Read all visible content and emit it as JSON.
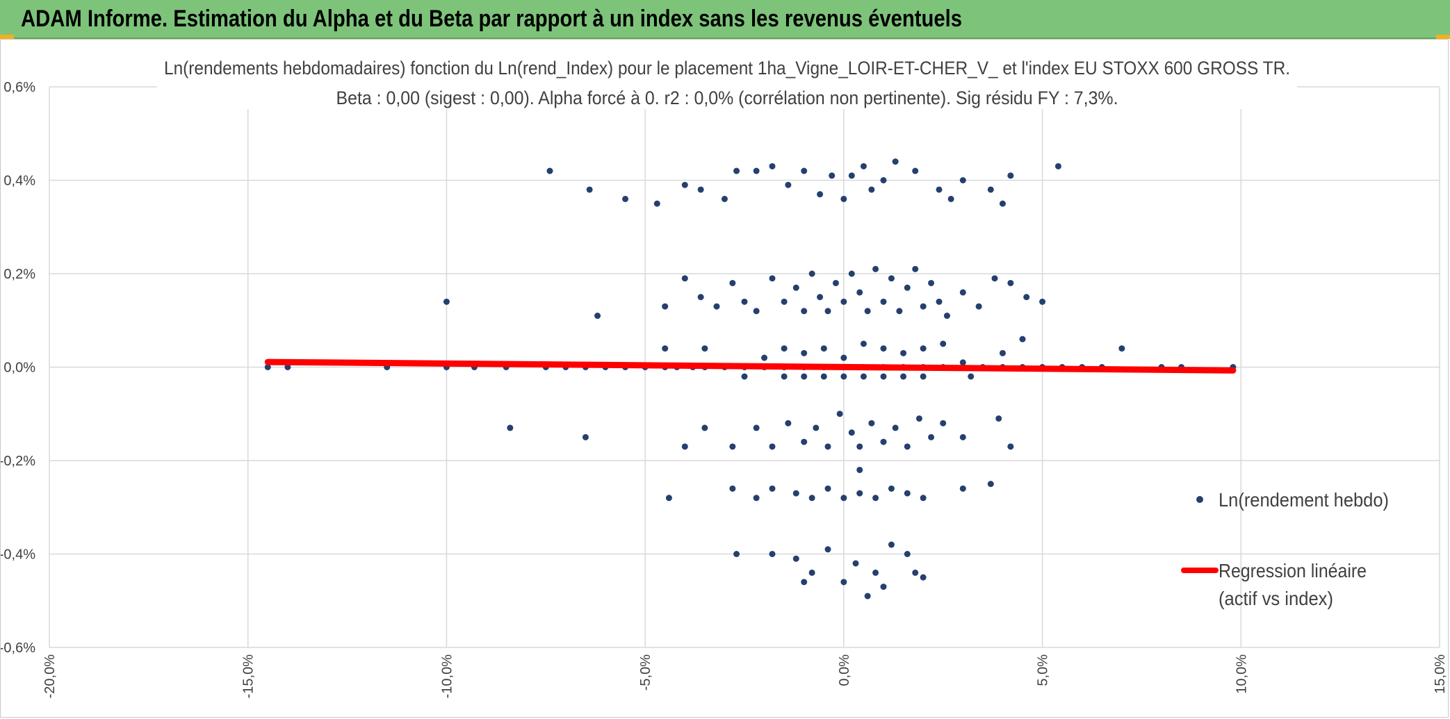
{
  "header": {
    "title": "ADAM Informe. Estimation du Alpha et du Beta par rapport à un index sans les revenus éventuels"
  },
  "colors": {
    "header_bg": "#7dc47a",
    "points": "#253f6e",
    "regression": "#ff0000",
    "grid": "#d9d9d9"
  },
  "chart_data": {
    "type": "scatter",
    "title": "Ln(rendements hebdomadaires) fonction du Ln(rend_Index) pour le placement 1ha_Vigne_LOIR-ET-CHER_V_ et l'index EU STOXX 600 GROSS TR.",
    "subtitle": "Beta : 0,00 (sigest : 0,00). Alpha forcé à 0. r2 : 0,0% (corrélation non pertinente). Sig résidu FY : 7,3%.",
    "xlabel": "",
    "ylabel": "",
    "xlim": [
      -0.2,
      0.15
    ],
    "ylim": [
      -0.006,
      0.006
    ],
    "grid": true,
    "legend_position": "right",
    "x_tick_labels": [
      "-20,0%",
      "-15,0%",
      "-10,0%",
      "-5,0%",
      "0,0%",
      "5,0%",
      "10,0%",
      "15,0%"
    ],
    "x_ticks": [
      -0.2,
      -0.15,
      -0.1,
      -0.05,
      0.0,
      0.05,
      0.1,
      0.15
    ],
    "y_tick_labels": [
      "-0,6%",
      "-0,4%",
      "-0,2%",
      "0,0%",
      "0,2%",
      "0,4%",
      "0,6%"
    ],
    "y_ticks": [
      -0.006,
      -0.004,
      -0.002,
      0.0,
      0.002,
      0.004,
      0.006
    ],
    "series": [
      {
        "name": "Ln(rendement hebdo)",
        "kind": "scatter",
        "points": [
          [
            -0.145,
            0.0
          ],
          [
            -0.14,
            0.0
          ],
          [
            -0.115,
            0.0
          ],
          [
            -0.1,
            0.0
          ],
          [
            -0.093,
            0.0
          ],
          [
            -0.085,
            0.0
          ],
          [
            -0.075,
            0.0
          ],
          [
            -0.07,
            0.0
          ],
          [
            -0.065,
            0.0
          ],
          [
            -0.06,
            0.0
          ],
          [
            -0.055,
            0.0
          ],
          [
            -0.05,
            0.0
          ],
          [
            -0.045,
            0.0
          ],
          [
            -0.042,
            0.0
          ],
          [
            -0.038,
            0.0
          ],
          [
            -0.035,
            0.0
          ],
          [
            -0.03,
            0.0
          ],
          [
            -0.025,
            0.0
          ],
          [
            -0.02,
            0.0
          ],
          [
            -0.015,
            0.0
          ],
          [
            -0.01,
            0.0
          ],
          [
            -0.005,
            0.0
          ],
          [
            0.0,
            0.0
          ],
          [
            0.005,
            0.0
          ],
          [
            0.01,
            0.0
          ],
          [
            0.015,
            0.0
          ],
          [
            0.02,
            0.0
          ],
          [
            0.025,
            0.0
          ],
          [
            0.03,
            0.0
          ],
          [
            0.035,
            0.0
          ],
          [
            0.04,
            0.0
          ],
          [
            0.045,
            0.0
          ],
          [
            0.05,
            0.0
          ],
          [
            0.055,
            0.0
          ],
          [
            0.06,
            0.0
          ],
          [
            0.065,
            0.0
          ],
          [
            0.08,
            0.0
          ],
          [
            0.085,
            0.0
          ],
          [
            0.098,
            0.0
          ],
          [
            -0.074,
            0.0042
          ],
          [
            -0.064,
            0.0038
          ],
          [
            -0.055,
            0.0036
          ],
          [
            -0.047,
            0.0035
          ],
          [
            -0.04,
            0.0039
          ],
          [
            -0.036,
            0.0038
          ],
          [
            -0.03,
            0.0036
          ],
          [
            -0.027,
            0.0042
          ],
          [
            -0.022,
            0.0042
          ],
          [
            -0.018,
            0.0043
          ],
          [
            -0.014,
            0.0039
          ],
          [
            -0.01,
            0.0042
          ],
          [
            -0.006,
            0.0037
          ],
          [
            -0.003,
            0.0041
          ],
          [
            0.0,
            0.0036
          ],
          [
            0.002,
            0.0041
          ],
          [
            0.005,
            0.0043
          ],
          [
            0.007,
            0.0038
          ],
          [
            0.01,
            0.004
          ],
          [
            0.013,
            0.0044
          ],
          [
            0.018,
            0.0042
          ],
          [
            0.024,
            0.0038
          ],
          [
            0.027,
            0.0036
          ],
          [
            0.03,
            0.004
          ],
          [
            0.037,
            0.0038
          ],
          [
            0.04,
            0.0035
          ],
          [
            0.042,
            0.0041
          ],
          [
            0.054,
            0.0043
          ],
          [
            -0.1,
            0.0014
          ],
          [
            -0.062,
            0.0011
          ],
          [
            -0.045,
            0.0013
          ],
          [
            -0.04,
            0.0019
          ],
          [
            -0.036,
            0.0015
          ],
          [
            -0.032,
            0.0013
          ],
          [
            -0.028,
            0.0018
          ],
          [
            -0.025,
            0.0014
          ],
          [
            -0.022,
            0.0012
          ],
          [
            -0.018,
            0.0019
          ],
          [
            -0.015,
            0.0014
          ],
          [
            -0.012,
            0.0017
          ],
          [
            -0.01,
            0.0012
          ],
          [
            -0.008,
            0.002
          ],
          [
            -0.006,
            0.0015
          ],
          [
            -0.004,
            0.0012
          ],
          [
            -0.002,
            0.0018
          ],
          [
            0.0,
            0.0014
          ],
          [
            0.002,
            0.002
          ],
          [
            0.004,
            0.0016
          ],
          [
            0.006,
            0.0012
          ],
          [
            0.008,
            0.0021
          ],
          [
            0.01,
            0.0014
          ],
          [
            0.012,
            0.0019
          ],
          [
            0.014,
            0.0012
          ],
          [
            0.016,
            0.0017
          ],
          [
            0.018,
            0.0021
          ],
          [
            0.02,
            0.0013
          ],
          [
            0.022,
            0.0018
          ],
          [
            0.024,
            0.0014
          ],
          [
            0.026,
            0.0011
          ],
          [
            0.03,
            0.0016
          ],
          [
            0.034,
            0.0013
          ],
          [
            0.038,
            0.0019
          ],
          [
            0.042,
            0.0018
          ],
          [
            0.046,
            0.0015
          ],
          [
            0.05,
            0.0014
          ],
          [
            -0.045,
            0.0004
          ],
          [
            -0.035,
            0.0004
          ],
          [
            -0.02,
            0.0002
          ],
          [
            -0.015,
            0.0004
          ],
          [
            -0.01,
            0.0003
          ],
          [
            -0.005,
            0.0004
          ],
          [
            0.0,
            0.0002
          ],
          [
            0.005,
            0.0005
          ],
          [
            0.01,
            0.0004
          ],
          [
            0.015,
            0.0003
          ],
          [
            0.02,
            0.0004
          ],
          [
            0.025,
            0.0005
          ],
          [
            0.03,
            0.0001
          ],
          [
            0.04,
            0.0003
          ],
          [
            0.045,
            0.0006
          ],
          [
            0.07,
            0.0004
          ],
          [
            -0.025,
            -0.0002
          ],
          [
            -0.015,
            -0.0002
          ],
          [
            -0.01,
            -0.0002
          ],
          [
            -0.005,
            -0.0002
          ],
          [
            0.0,
            -0.0002
          ],
          [
            0.005,
            -0.0002
          ],
          [
            0.01,
            -0.0002
          ],
          [
            0.015,
            -0.0002
          ],
          [
            0.02,
            -0.0002
          ],
          [
            0.032,
            -0.0002
          ],
          [
            -0.084,
            -0.0013
          ],
          [
            -0.065,
            -0.0015
          ],
          [
            -0.04,
            -0.0017
          ],
          [
            -0.035,
            -0.0013
          ],
          [
            -0.028,
            -0.0017
          ],
          [
            -0.022,
            -0.0013
          ],
          [
            -0.018,
            -0.0017
          ],
          [
            -0.014,
            -0.0012
          ],
          [
            -0.01,
            -0.0016
          ],
          [
            -0.007,
            -0.0013
          ],
          [
            -0.004,
            -0.0017
          ],
          [
            -0.001,
            -0.001
          ],
          [
            0.002,
            -0.0014
          ],
          [
            0.004,
            -0.0017
          ],
          [
            0.007,
            -0.0012
          ],
          [
            0.01,
            -0.0016
          ],
          [
            0.013,
            -0.0013
          ],
          [
            0.016,
            -0.0017
          ],
          [
            0.019,
            -0.0011
          ],
          [
            0.022,
            -0.0015
          ],
          [
            0.025,
            -0.0012
          ],
          [
            0.03,
            -0.0015
          ],
          [
            0.039,
            -0.0011
          ],
          [
            0.042,
            -0.0017
          ],
          [
            -0.044,
            -0.0028
          ],
          [
            -0.028,
            -0.0026
          ],
          [
            -0.022,
            -0.0028
          ],
          [
            -0.018,
            -0.0026
          ],
          [
            -0.012,
            -0.0027
          ],
          [
            -0.008,
            -0.0028
          ],
          [
            -0.004,
            -0.0026
          ],
          [
            0.0,
            -0.0028
          ],
          [
            0.004,
            -0.0027
          ],
          [
            0.008,
            -0.0028
          ],
          [
            0.012,
            -0.0026
          ],
          [
            0.016,
            -0.0027
          ],
          [
            0.02,
            -0.0028
          ],
          [
            0.03,
            -0.0026
          ],
          [
            0.037,
            -0.0025
          ],
          [
            0.004,
            -0.0022
          ],
          [
            -0.027,
            -0.004
          ],
          [
            -0.018,
            -0.004
          ],
          [
            -0.012,
            -0.0041
          ],
          [
            -0.008,
            -0.0044
          ],
          [
            -0.004,
            -0.0039
          ],
          [
            0.0,
            -0.0046
          ],
          [
            0.003,
            -0.0042
          ],
          [
            0.006,
            -0.0049
          ],
          [
            0.008,
            -0.0044
          ],
          [
            0.012,
            -0.0038
          ],
          [
            0.016,
            -0.004
          ],
          [
            0.018,
            -0.0044
          ],
          [
            0.02,
            -0.0045
          ],
          [
            -0.01,
            -0.0046
          ],
          [
            0.01,
            -0.0047
          ]
        ]
      },
      {
        "name": "Regression linéaire (actif vs index)",
        "kind": "line",
        "x": [
          -0.145,
          0.098
        ],
        "y": [
          0.00011,
          -7e-05
        ]
      }
    ],
    "legend": {
      "entry1": "Ln(rendement hebdo)",
      "entry2_line1": "Regression linéaire",
      "entry2_line2": "(actif vs index)"
    }
  }
}
